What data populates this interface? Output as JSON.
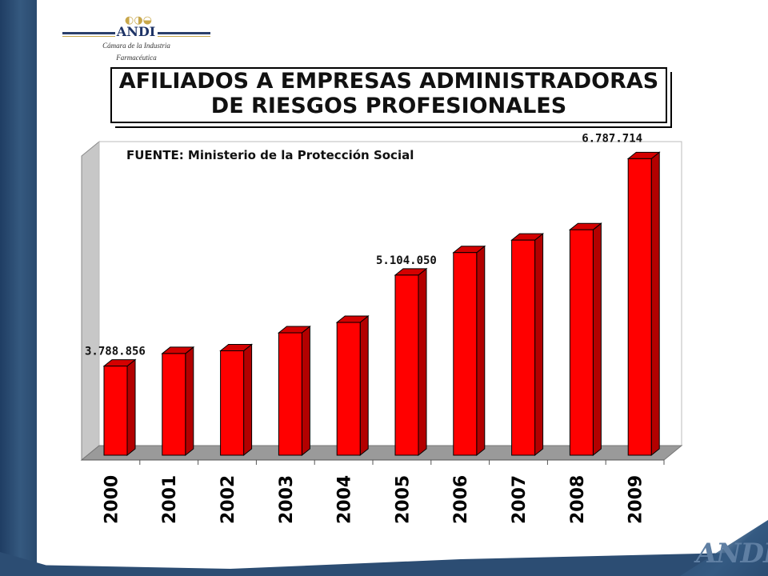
{
  "logo": {
    "name": "ANDI",
    "sub1": "Cámara de la Industria",
    "sub2": "Farmacéutica"
  },
  "title_lines": [
    "AFILIADOS A EMPRESAS ADMINISTRADORAS",
    "DE RIESGOS PROFESIONALES"
  ],
  "footer_logo_text": "ANDI",
  "chart_data": {
    "type": "bar",
    "source_note": "FUENTE: Ministerio de la Protección Social",
    "categories": [
      "2000",
      "2001",
      "2002",
      "2003",
      "2004",
      "2005",
      "2006",
      "2007",
      "2008",
      "2009"
    ],
    "values": [
      3788856,
      3970000,
      4010000,
      4270000,
      4420000,
      5104050,
      5430000,
      5610000,
      5760000,
      6787714
    ],
    "data_labels": [
      {
        "index": 0,
        "text": "3.788.856"
      },
      {
        "index": 5,
        "text": "5.104.050"
      },
      {
        "index": 9,
        "text": "6.787.714"
      }
    ],
    "bar_color": "#ff0000",
    "bar_side_color": "#b30000",
    "bar_top_color": "#d40000",
    "grid": false,
    "legend": "none"
  }
}
